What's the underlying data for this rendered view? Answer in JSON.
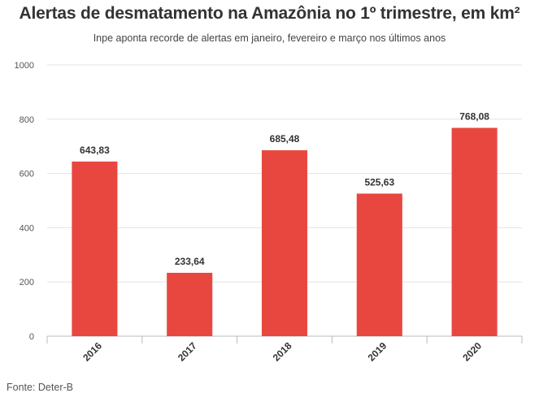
{
  "chart_data": {
    "type": "bar",
    "title": "Alertas de desmatamento na Amazônia no 1º trimestre, em km²",
    "subtitle": "Inpe aponta recorde de alertas em janeiro, fevereiro e março nos últimos anos",
    "categories": [
      "2016",
      "2017",
      "2018",
      "2019",
      "2020"
    ],
    "values": [
      643.83,
      233.64,
      685.48,
      525.63,
      768.08
    ],
    "data_labels": [
      "643,83",
      "233,64",
      "685,48",
      "525,63",
      "768,08"
    ],
    "ylim": [
      0,
      1000
    ],
    "yticks": [
      0,
      200,
      400,
      600,
      800,
      1000
    ],
    "ytick_labels": [
      "0",
      "200",
      "400",
      "600",
      "800",
      "1000"
    ],
    "xlabel": "",
    "ylabel": "",
    "grid": true,
    "bar_color": "#e8473f",
    "source": "Fonte: Deter-B"
  }
}
